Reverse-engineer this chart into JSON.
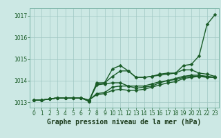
{
  "title": "Graphe pression niveau de la mer (hPa)",
  "xlim": [
    -0.5,
    23.5
  ],
  "ylim": [
    1012.75,
    1017.35
  ],
  "yticks": [
    1013,
    1014,
    1015,
    1016,
    1017
  ],
  "xticks": [
    0,
    1,
    2,
    3,
    4,
    5,
    6,
    7,
    8,
    9,
    10,
    11,
    12,
    13,
    14,
    15,
    16,
    17,
    18,
    19,
    20,
    21,
    22,
    23
  ],
  "bg_color": "#cce8e4",
  "grid_color": "#a0c8c4",
  "line_color": "#1a5c28",
  "series": [
    [
      1013.1,
      1013.1,
      1013.15,
      1013.2,
      1013.2,
      1013.2,
      1013.2,
      1013.05,
      1013.85,
      1013.9,
      1014.55,
      1014.7,
      1014.45,
      1014.15,
      1014.15,
      1014.2,
      1014.3,
      1014.35,
      1014.35,
      1014.7,
      1014.75,
      1015.15,
      1016.6,
      1017.05
    ],
    [
      1013.1,
      1013.1,
      1013.15,
      1013.2,
      1013.2,
      1013.2,
      1013.2,
      1013.05,
      1013.9,
      1013.9,
      1014.2,
      1014.45,
      1014.45,
      1014.15,
      1014.15,
      1014.2,
      1014.25,
      1014.3,
      1014.35,
      1014.5,
      1014.5,
      1014.35,
      1014.3,
      1014.2
    ],
    [
      1013.1,
      1013.1,
      1013.15,
      1013.2,
      1013.2,
      1013.2,
      1013.2,
      1013.05,
      1013.8,
      1013.85,
      1013.9,
      1013.9,
      1013.75,
      1013.65,
      1013.7,
      1013.75,
      1013.9,
      1014.0,
      1014.05,
      1014.15,
      1014.2,
      1014.2,
      1014.2,
      1014.15
    ],
    [
      1013.1,
      1013.1,
      1013.15,
      1013.2,
      1013.2,
      1013.2,
      1013.2,
      1013.1,
      1013.4,
      1013.45,
      1013.7,
      1013.75,
      1013.75,
      1013.75,
      1013.75,
      1013.85,
      1013.95,
      1014.0,
      1014.1,
      1014.2,
      1014.25,
      1014.25,
      1014.2,
      1014.15
    ],
    [
      1013.1,
      1013.1,
      1013.15,
      1013.2,
      1013.2,
      1013.2,
      1013.2,
      1013.1,
      1013.35,
      1013.4,
      1013.55,
      1013.6,
      1013.55,
      1013.55,
      1013.6,
      1013.7,
      1013.8,
      1013.9,
      1013.95,
      1014.1,
      1014.15,
      1014.2,
      1014.15,
      1014.15
    ]
  ],
  "marker": "D",
  "markersize": 2.5,
  "linewidth": 1.0,
  "title_fontsize": 7,
  "tick_fontsize": 5.5,
  "tick_color": "#1a5c28",
  "label_color": "#1a3a1a"
}
